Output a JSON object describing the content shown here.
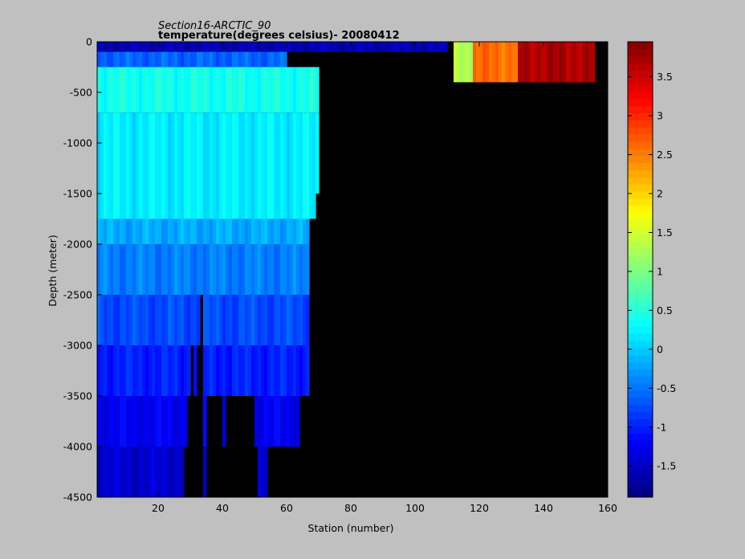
{
  "chart_data": {
    "type": "heatmap",
    "title": "Section16-ARCTIC_90",
    "subtitle": "temperature(degrees  celsius)- 20080412",
    "xlabel": "Station (number)",
    "ylabel": "Depth (meter)",
    "xlim": [
      1,
      160
    ],
    "ylim": [
      -4500,
      0
    ],
    "xticks": [
      "20",
      "40",
      "60",
      "80",
      "100",
      "120",
      "140",
      "160"
    ],
    "yticks": [
      "0",
      "-500",
      "-1000",
      "-1500",
      "-2000",
      "-2500",
      "-3000",
      "-3500",
      "-4000",
      "-4500"
    ],
    "colorbar": {
      "range": [
        -1.9,
        3.95
      ],
      "colormap": "jet",
      "ticks": [
        "-1.5",
        "-1",
        "-0.5",
        "0",
        "0.5",
        "1",
        "1.5",
        "2",
        "2.5",
        "3",
        "3.5"
      ]
    },
    "nodata_color": "#000000",
    "seafloor_depth_by_station": [
      [
        1,
        -4500
      ],
      [
        27,
        -4500
      ],
      [
        28,
        -4000
      ],
      [
        29,
        -3500
      ],
      [
        30,
        -3000
      ],
      [
        31,
        -3500
      ],
      [
        32,
        -3000
      ],
      [
        33,
        -2500
      ],
      [
        34,
        -4500
      ],
      [
        35,
        -3500
      ],
      [
        40,
        -4000
      ],
      [
        41,
        -3500
      ],
      [
        50,
        -4000
      ],
      [
        51,
        -4500
      ],
      [
        54,
        -4000
      ],
      [
        64,
        -3500
      ],
      [
        67,
        -3000
      ],
      [
        68,
        -2500
      ],
      [
        69,
        -1500
      ],
      [
        70,
        -400
      ],
      [
        160,
        -400
      ]
    ],
    "temperature_layers": [
      {
        "depth_range": [
          0,
          -100
        ],
        "stations": [
          1,
          110
        ],
        "value": -1.6
      },
      {
        "depth_range": [
          -100,
          -250
        ],
        "stations": [
          1,
          60
        ],
        "value": -0.6
      },
      {
        "depth_range": [
          -250,
          -700
        ],
        "stations": [
          1,
          70
        ],
        "value": 0.4
      },
      {
        "depth_range": [
          -700,
          -1750
        ],
        "stations": [
          1,
          70
        ],
        "value": 0.2
      },
      {
        "depth_range": [
          -1750,
          -2000
        ],
        "stations": [
          1,
          67
        ],
        "value": -0.2
      },
      {
        "depth_range": [
          -2000,
          -2500
        ],
        "stations": [
          1,
          67
        ],
        "value": -0.45
      },
      {
        "depth_range": [
          -2500,
          -3000
        ],
        "stations": [
          1,
          67
        ],
        "value": -0.75
      },
      {
        "depth_range": [
          -3000,
          -3500
        ],
        "stations": [
          1,
          67
        ],
        "value": -1.0
      },
      {
        "depth_range": [
          -3500,
          -4000
        ],
        "stations": [
          1,
          64
        ],
        "value": -1.25
      },
      {
        "depth_range": [
          -4000,
          -4500
        ],
        "stations": [
          1,
          54
        ],
        "value": -1.45
      },
      {
        "depth_range": [
          0,
          -400
        ],
        "stations": [
          112,
          118
        ],
        "value": 1.3
      },
      {
        "depth_range": [
          0,
          -400
        ],
        "stations": [
          118,
          132
        ],
        "value": 2.6
      },
      {
        "depth_range": [
          0,
          -400
        ],
        "stations": [
          132,
          156
        ],
        "value": 3.7
      }
    ]
  }
}
